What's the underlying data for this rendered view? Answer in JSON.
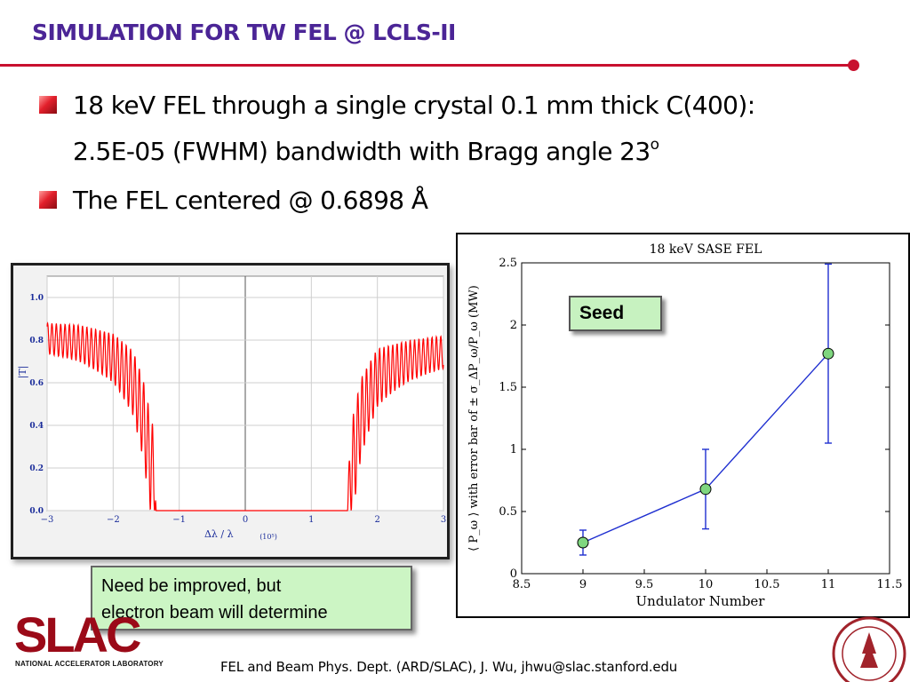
{
  "slide": {
    "title": "SIMULATION FOR TW FEL @ LCLS-II",
    "bullets": [
      {
        "line1": "18 keV FEL through a single crystal 0.1 mm thick C(400):",
        "line2": "2.5E-05 (FWHM) bandwidth with Bragg angle 23",
        "sup": "o"
      },
      {
        "line1": "The FEL centered @ 0.6898 Å"
      }
    ]
  },
  "callouts": {
    "seed": "Seed",
    "note_line1": "Need be improved, but",
    "note_line2": "electron beam will determine"
  },
  "footer": {
    "text": "FEL and Beam Phys. Dept. (ARD/SLAC), J. Wu, jhwu@slac.stanford.edu",
    "logo_text": "SLAC",
    "logo_sub": "NATIONAL ACCELERATOR LABORATORY"
  },
  "colors": {
    "title": "#4b2596",
    "rule": "#c8102e",
    "transmission_line": "#ff0000",
    "sase_line": "#1f2fd0",
    "marker_fill": "#7fd67f"
  },
  "chart_data": [
    {
      "type": "line",
      "title": "",
      "xlabel": "Δλ / λ",
      "xlabel_unit": "(10⁵)",
      "ylabel": "|T|",
      "xlim": [
        -3,
        3
      ],
      "ylim": [
        0,
        1.1
      ],
      "xticks": [
        "−3",
        "−2",
        "−1",
        "0",
        "1",
        "2",
        "3"
      ],
      "yticks": [
        "0.0",
        "0.2",
        "0.4",
        "0.6",
        "0.8",
        "1.0"
      ],
      "grid": true,
      "series": [
        {
          "x": [
            -3.0,
            -2.5,
            -2.0,
            -1.7,
            -1.55,
            -1.4,
            -1.36,
            -1.35,
            1.55,
            1.56,
            1.6,
            1.75,
            2.0,
            2.5,
            3.0
          ],
          "y": [
            0.88,
            0.87,
            0.83,
            0.75,
            0.62,
            0.4,
            0.15,
            0.0,
            0.0,
            0.15,
            0.4,
            0.62,
            0.76,
            0.8,
            0.82
          ]
        }
      ]
    },
    {
      "type": "line",
      "title": "18 keV SASE FEL",
      "xlabel": "Undulator Number",
      "ylabel": "⟨ P_ω ⟩ with error bar of ± σ_ΔP_ω/P_ω (MW)",
      "xlim": [
        8.5,
        11.5
      ],
      "ylim": [
        0,
        2.5
      ],
      "xticks": [
        "8.5",
        "9",
        "9.5",
        "10",
        "10.5",
        "11",
        "11.5"
      ],
      "yticks": [
        "0",
        "0.5",
        "1",
        "1.5",
        "2",
        "2.5"
      ],
      "grid": false,
      "series": [
        {
          "x": [
            9,
            10,
            11
          ],
          "y": [
            0.25,
            0.68,
            1.77
          ],
          "error": [
            0.1,
            0.32,
            0.72
          ]
        }
      ]
    }
  ]
}
